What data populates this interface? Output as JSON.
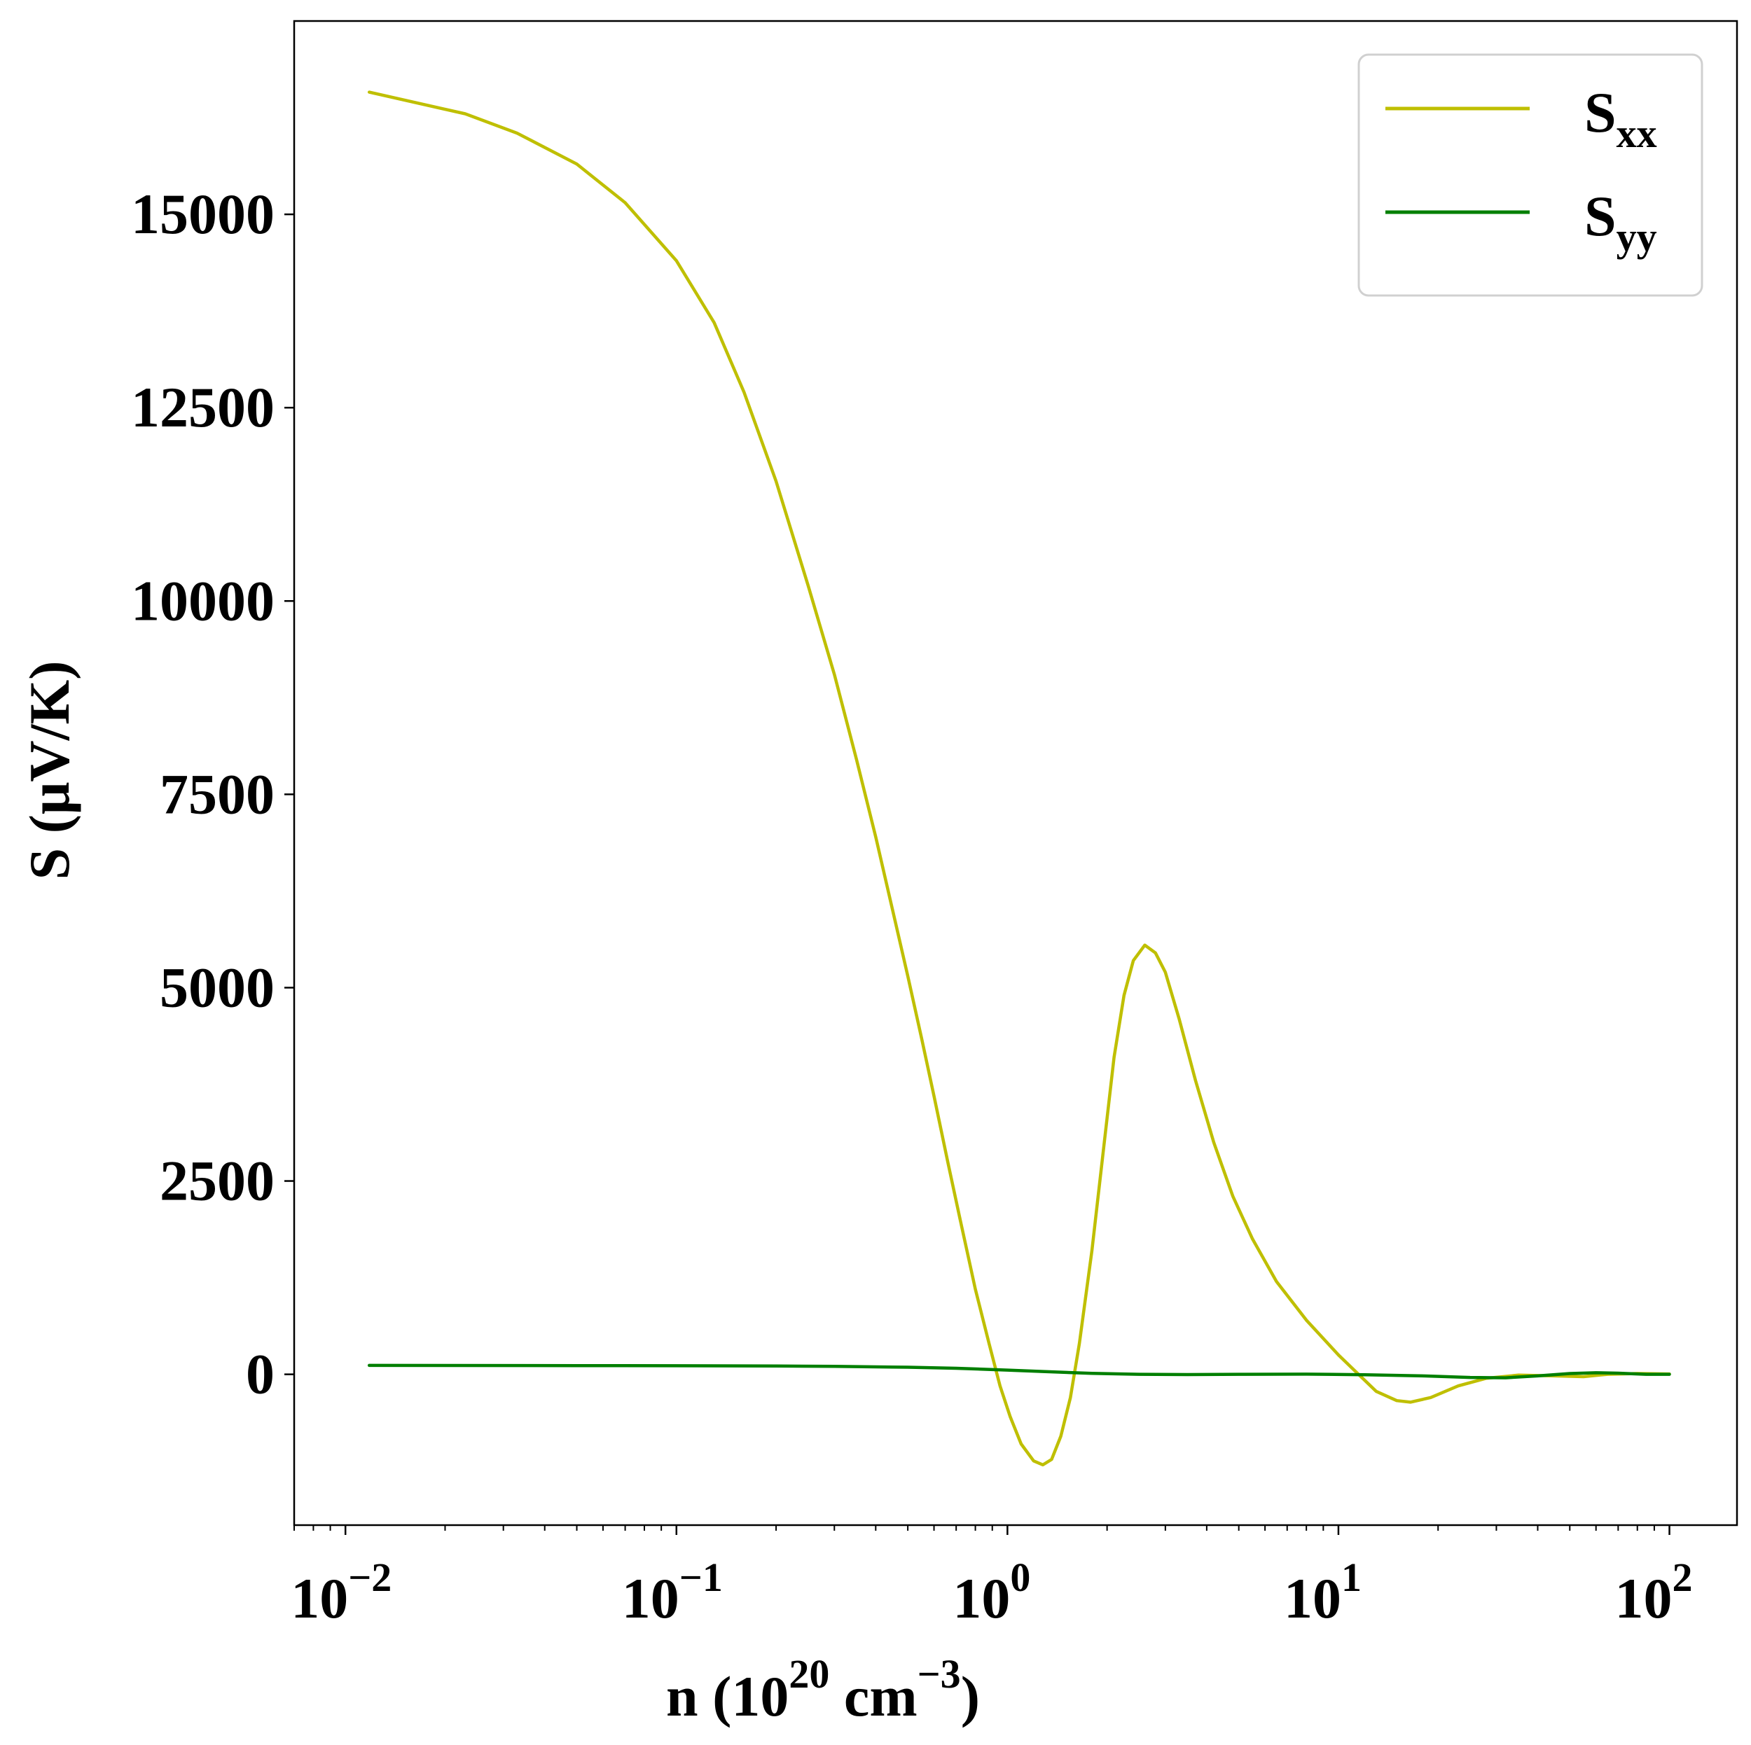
{
  "chart_data": {
    "type": "line",
    "title": "",
    "xlabel": {
      "base": "n (10",
      "sup1": "20",
      "mid": " cm",
      "sup2": "−3",
      "end": ")"
    },
    "ylabel": "S (μV/K)",
    "xscale": "log",
    "xlim": [
      0.007,
      160
    ],
    "ylim": [
      -1950,
      17500
    ],
    "grid": false,
    "legend_placement": "top-right",
    "y_ticks": [
      {
        "value": 0,
        "label": "0"
      },
      {
        "value": 2500,
        "label": "2500"
      },
      {
        "value": 5000,
        "label": "5000"
      },
      {
        "value": 7500,
        "label": "7500"
      },
      {
        "value": 10000,
        "label": "10000"
      },
      {
        "value": 12500,
        "label": "12500"
      },
      {
        "value": 15000,
        "label": "15000"
      }
    ],
    "x_ticks": [
      {
        "value": 0.01,
        "base": "10",
        "exp": "−2"
      },
      {
        "value": 0.1,
        "base": "10",
        "exp": "−1"
      },
      {
        "value": 1,
        "base": "10",
        "exp": "0"
      },
      {
        "value": 10,
        "base": "10",
        "exp": "1"
      },
      {
        "value": 100,
        "base": "10",
        "exp": "2"
      }
    ],
    "series": [
      {
        "name": "S",
        "name_sub": "xx",
        "color": "#bfbf00",
        "points": [
          [
            0.0118,
            16580
          ],
          [
            0.023,
            16300
          ],
          [
            0.033,
            16050
          ],
          [
            0.05,
            15650
          ],
          [
            0.07,
            15150
          ],
          [
            0.1,
            14400
          ],
          [
            0.13,
            13600
          ],
          [
            0.16,
            12700
          ],
          [
            0.2,
            11550
          ],
          [
            0.25,
            10200
          ],
          [
            0.3,
            9050
          ],
          [
            0.35,
            7950
          ],
          [
            0.4,
            6950
          ],
          [
            0.45,
            6000
          ],
          [
            0.5,
            5150
          ],
          [
            0.55,
            4350
          ],
          [
            0.6,
            3600
          ],
          [
            0.66,
            2750
          ],
          [
            0.72,
            2000
          ],
          [
            0.8,
            1100
          ],
          [
            0.88,
            400
          ],
          [
            0.95,
            -150
          ],
          [
            1.02,
            -550
          ],
          [
            1.1,
            -900
          ],
          [
            1.2,
            -1120
          ],
          [
            1.28,
            -1170
          ],
          [
            1.36,
            -1100
          ],
          [
            1.45,
            -800
          ],
          [
            1.55,
            -300
          ],
          [
            1.65,
            400
          ],
          [
            1.8,
            1600
          ],
          [
            1.95,
            2900
          ],
          [
            2.1,
            4100
          ],
          [
            2.25,
            4900
          ],
          [
            2.4,
            5350
          ],
          [
            2.6,
            5550
          ],
          [
            2.8,
            5450
          ],
          [
            3.0,
            5200
          ],
          [
            3.3,
            4600
          ],
          [
            3.7,
            3800
          ],
          [
            4.2,
            3000
          ],
          [
            4.8,
            2300
          ],
          [
            5.5,
            1750
          ],
          [
            6.5,
            1200
          ],
          [
            8.0,
            700
          ],
          [
            10.0,
            250
          ],
          [
            11.5,
            0
          ],
          [
            13.0,
            -220
          ],
          [
            15.0,
            -340
          ],
          [
            16.5,
            -360
          ],
          [
            19.0,
            -300
          ],
          [
            23.0,
            -150
          ],
          [
            28.0,
            -50
          ],
          [
            35.0,
            -10
          ],
          [
            45.0,
            -20
          ],
          [
            55.0,
            -30
          ],
          [
            65.0,
            0
          ],
          [
            80.0,
            10
          ],
          [
            100.0,
            5
          ]
        ]
      },
      {
        "name": "S",
        "name_sub": "yy",
        "color": "#007f00",
        "points": [
          [
            0.0118,
            115
          ],
          [
            0.05,
            113
          ],
          [
            0.1,
            111
          ],
          [
            0.2,
            108
          ],
          [
            0.3,
            103
          ],
          [
            0.5,
            92
          ],
          [
            0.7,
            78
          ],
          [
            1.0,
            55
          ],
          [
            1.3,
            35
          ],
          [
            1.8,
            12
          ],
          [
            2.5,
            0
          ],
          [
            3.5,
            -3
          ],
          [
            5.0,
            0
          ],
          [
            8.0,
            2
          ],
          [
            12.0,
            -5
          ],
          [
            18.0,
            -20
          ],
          [
            25.0,
            -40
          ],
          [
            32.0,
            -45
          ],
          [
            40.0,
            -20
          ],
          [
            50.0,
            10
          ],
          [
            60.0,
            20
          ],
          [
            70.0,
            15
          ],
          [
            85.0,
            0
          ],
          [
            100.0,
            0
          ]
        ]
      }
    ]
  }
}
